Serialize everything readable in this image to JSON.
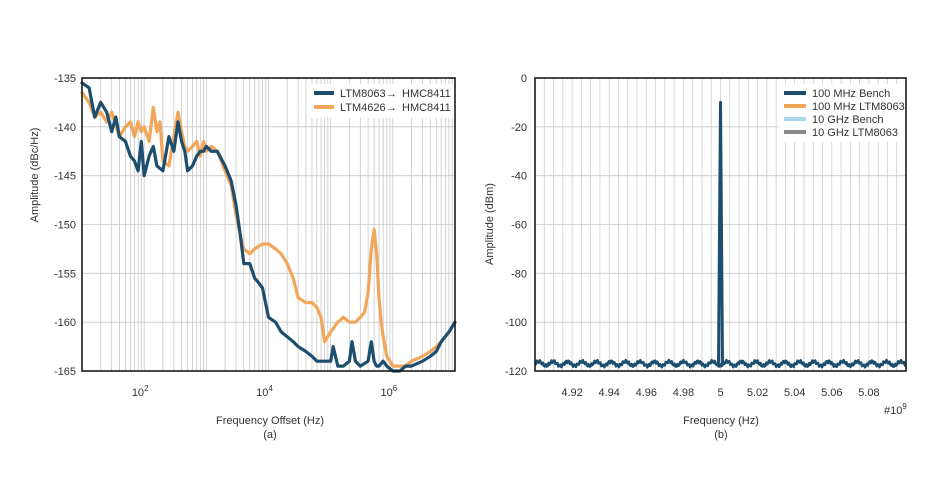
{
  "colors": {
    "navy": "#1d4e6e",
    "orange": "#f2a65a",
    "lightblue": "#a9d4ec",
    "gray": "#8a8a8a",
    "grid": "#c8c8c8",
    "frame": "#1a1a1a"
  },
  "chart_data": [
    {
      "type": "line",
      "caption": "(a)",
      "xlabel": "Frequency Offset (Hz)",
      "ylabel": "Amplitude (dBc/Hz)",
      "xscale": "log",
      "xlim": [
        10,
        10000000
      ],
      "ylim": [
        -165,
        -135
      ],
      "grid": true,
      "legend_position": "top-right",
      "xticks": [
        {
          "value": 100,
          "base": "10",
          "exp": "2"
        },
        {
          "value": 10000,
          "base": "10",
          "exp": "4"
        },
        {
          "value": 1000000,
          "base": "10",
          "exp": "6"
        }
      ],
      "yticks": [
        {
          "value": -135,
          "label": "-135"
        },
        {
          "value": -140,
          "label": "-140"
        },
        {
          "value": -145,
          "label": "-145"
        },
        {
          "value": -150,
          "label": "-150"
        },
        {
          "value": -155,
          "label": "-155"
        },
        {
          "value": -160,
          "label": "-160"
        },
        {
          "value": -165,
          "label": "-165"
        }
      ],
      "series": [
        {
          "name_left": "LTM4626",
          "name_right": "HMC8411",
          "color": "#f2a65a",
          "x": [
            10,
            13,
            16,
            20,
            25,
            30,
            40,
            50,
            60,
            70,
            80,
            90,
            100,
            120,
            140,
            160,
            180,
            200,
            250,
            300,
            350,
            400,
            450,
            500,
            600,
            700,
            800,
            900,
            1000,
            1200,
            1500,
            2000,
            2500,
            3000,
            3500,
            4000,
            5000,
            6000,
            8000,
            10000,
            13000,
            16000,
            20000,
            25000,
            30000,
            40000,
            50000,
            60000,
            70000,
            80000,
            100000,
            130000,
            160000,
            200000,
            250000,
            300000,
            350000,
            400000,
            450000,
            500000,
            550000,
            600000,
            650000,
            700000,
            800000,
            1000000,
            1300000,
            1600000,
            2000000,
            3000000,
            4000000,
            5000000,
            6000000,
            8000000,
            10000000
          ],
          "y": [
            -136.5,
            -137.5,
            -139.0,
            -138.5,
            -139.5,
            -138.5,
            -141.0,
            -140.0,
            -139.5,
            -141.0,
            -139.5,
            -140.5,
            -140.0,
            -141.5,
            -138.0,
            -140.5,
            -139.5,
            -143.5,
            -144.0,
            -141.0,
            -138.5,
            -140.5,
            -142.0,
            -142.5,
            -142.0,
            -141.5,
            -143.0,
            -141.5,
            -142.5,
            -142.0,
            -142.5,
            -144.5,
            -146.0,
            -149.0,
            -151.0,
            -152.5,
            -153.0,
            -152.5,
            -152.0,
            -152.0,
            -152.5,
            -153.0,
            -154.0,
            -155.5,
            -157.5,
            -158.0,
            -158.0,
            -158.5,
            -159.5,
            -162.0,
            -161.0,
            -160.0,
            -159.5,
            -160.0,
            -160.0,
            -159.5,
            -159.0,
            -157.0,
            -152.5,
            -150.5,
            -153.0,
            -157.5,
            -160.0,
            -161.5,
            -163.5,
            -164.5,
            -164.5,
            -164.5,
            -164.0,
            -163.5,
            -163.0,
            -162.5,
            -162.0,
            -161.0,
            -160.0
          ]
        },
        {
          "name_left": "LTM8063",
          "name_right": "HMC8411",
          "color": "#1d4e6e",
          "x": [
            10,
            13,
            16,
            20,
            25,
            30,
            35,
            40,
            50,
            60,
            70,
            80,
            90,
            100,
            120,
            140,
            160,
            200,
            250,
            300,
            350,
            400,
            450,
            500,
            600,
            700,
            800,
            900,
            1000,
            1200,
            1500,
            2000,
            2500,
            3000,
            3500,
            4000,
            5000,
            6000,
            7000,
            8000,
            10000,
            13000,
            16000,
            20000,
            25000,
            30000,
            40000,
            50000,
            60000,
            80000,
            100000,
            110000,
            130000,
            160000,
            200000,
            220000,
            250000,
            300000,
            400000,
            450000,
            500000,
            550000,
            600000,
            700000,
            800000,
            1000000,
            1300000,
            1600000,
            2000000,
            3000000,
            4000000,
            5000000,
            6000000,
            8000000,
            10000000
          ],
          "y": [
            -135.5,
            -136.0,
            -139.0,
            -137.5,
            -138.5,
            -140.5,
            -139.0,
            -141.0,
            -141.5,
            -143.0,
            -143.5,
            -144.5,
            -141.5,
            -145.0,
            -143.0,
            -142.0,
            -144.0,
            -144.5,
            -141.0,
            -142.5,
            -139.5,
            -141.5,
            -142.5,
            -144.5,
            -144.0,
            -143.0,
            -142.5,
            -142.5,
            -142.0,
            -142.5,
            -142.5,
            -144.0,
            -145.5,
            -148.0,
            -151.0,
            -154.0,
            -154.0,
            -155.5,
            -156.0,
            -156.5,
            -159.5,
            -160.0,
            -161.0,
            -161.5,
            -162.0,
            -162.5,
            -163.0,
            -163.5,
            -164.0,
            -164.0,
            -164.0,
            -162.5,
            -164.5,
            -164.5,
            -164.0,
            -162.0,
            -164.0,
            -164.5,
            -164.0,
            -162.0,
            -164.0,
            -164.5,
            -164.5,
            -164.0,
            -164.5,
            -165.0,
            -165.0,
            -164.5,
            -164.5,
            -164.0,
            -163.5,
            -163.0,
            -162.0,
            -161.0,
            -160.0
          ]
        }
      ]
    },
    {
      "type": "line",
      "caption": "(b)",
      "xlabel": "Frequency (Hz)",
      "ylabel": "Amplitude (dBm)",
      "x_exponent_label": "#10",
      "x_exponent_power": "9",
      "xlim": [
        4.9,
        5.1
      ],
      "ylim": [
        -120,
        0
      ],
      "grid": true,
      "legend_position": "top-right",
      "xticks": [
        {
          "value": 4.92,
          "label": "4.92"
        },
        {
          "value": 4.94,
          "label": "4.94"
        },
        {
          "value": 4.96,
          "label": "4.96"
        },
        {
          "value": 4.98,
          "label": "4.98"
        },
        {
          "value": 5.0,
          "label": "5"
        },
        {
          "value": 5.02,
          "label": "5.02"
        },
        {
          "value": 5.04,
          "label": "5.04"
        },
        {
          "value": 5.06,
          "label": "5.06"
        },
        {
          "value": 5.08,
          "label": "5.08"
        }
      ],
      "yticks": [
        {
          "value": 0,
          "label": "0"
        },
        {
          "value": -20,
          "label": "-20"
        },
        {
          "value": -40,
          "label": "-40"
        },
        {
          "value": -60,
          "label": "-60"
        },
        {
          "value": -80,
          "label": "-80"
        },
        {
          "value": -100,
          "label": "-100"
        },
        {
          "value": -120,
          "label": "-120"
        }
      ],
      "noise_floor": -117,
      "peak": {
        "x": 5.0,
        "y": -10
      },
      "series": [
        {
          "name": "100 MHz Bench",
          "color": "#1d4e6e"
        },
        {
          "name": "100 MHz LTM8063",
          "color": "#f2a65a"
        },
        {
          "name": "10 GHz Bench",
          "color": "#a9d4ec"
        },
        {
          "name": "10 GHz LTM8063",
          "color": "#8a8a8a"
        }
      ]
    }
  ]
}
